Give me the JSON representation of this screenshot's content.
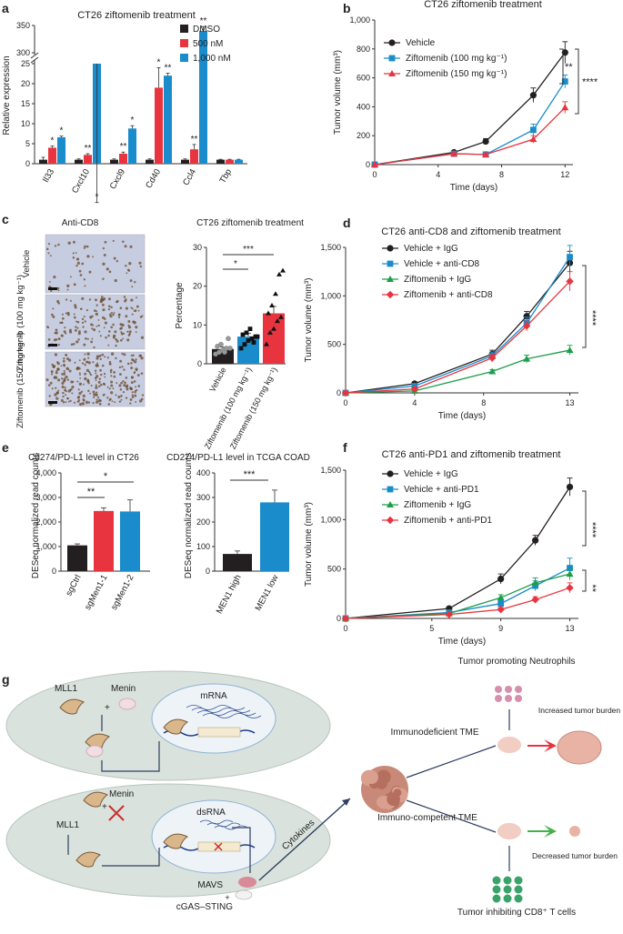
{
  "colors": {
    "black": "#231f20",
    "red": "#e8343f",
    "blue": "#1a8ccc",
    "green": "#1e9e4a",
    "cell": "#d9e2dc",
    "dark": "#5a6b62"
  },
  "panels": {
    "a": {
      "label": "a",
      "title": "CT26 ziftomenib treatment",
      "ylabel": "Relative expression",
      "legend": [
        "DMSO",
        "500 nM",
        "1,000 nM"
      ],
      "yticks_low": [
        "0",
        "5",
        "10",
        "15",
        "20",
        "25"
      ],
      "yticks_high": [
        "300",
        "350"
      ],
      "chart_data": {
        "type": "bar",
        "categories": [
          "Il33",
          "Cxcl10",
          "Cxcl9",
          "Cd40",
          "Ccl4",
          "Tbp"
        ],
        "series": [
          {
            "name": "DMSO",
            "values": [
              1,
              1,
              1,
              1,
              1,
              1
            ]
          },
          {
            "name": "500 nM",
            "values": [
              4,
              2.2,
              2.5,
              19,
              3.6,
              1
            ]
          },
          {
            "name": "1,000 nM",
            "values": [
              6.6,
              25,
              8.8,
              22,
              340,
              1
            ]
          }
        ],
        "errors": [
          [
            0.6,
            0.2,
            0.2,
            0.2,
            0.2,
            0.1
          ],
          [
            0.4,
            0.3,
            0.4,
            5,
            1.2,
            0.1
          ],
          [
            0.3,
            0.5,
            0.7,
            0.6,
            8,
            0.1
          ]
        ],
        "stars": [
          [
            "*",
            "*"
          ],
          [
            "**",
            "*"
          ],
          [
            "**",
            "*"
          ],
          [
            "*",
            "**"
          ],
          [
            "**",
            "**"
          ],
          [
            "",
            ""
          ]
        ]
      }
    },
    "b": {
      "label": "b",
      "title": "CT26 ziftomenib treatment",
      "ylabel": "Tumor volume (mm³)",
      "xlabel": "Time (days)",
      "legend": [
        "Vehicle",
        "Ziftomenib (100 mg kg⁻¹)",
        "Ziftomenib (150 mg kg⁻¹)"
      ],
      "sig": [
        "**",
        "****"
      ],
      "chart_data": {
        "type": "line",
        "x": [
          0,
          5,
          7,
          10,
          12
        ],
        "ylim": [
          0,
          1000
        ],
        "xlim": [
          0,
          12.5
        ],
        "xticks": [
          0,
          4,
          8,
          12
        ],
        "yticks": [
          "0",
          "200",
          "400",
          "600",
          "800",
          "1,000"
        ],
        "series": [
          {
            "name": "Vehicle",
            "values": [
              0,
              85,
              160,
              480,
              775
            ],
            "err": [
              0,
              10,
              20,
              50,
              75
            ]
          },
          {
            "name": "Ziftomenib (100 mg kg⁻¹)",
            "values": [
              0,
              75,
              70,
              240,
              575
            ],
            "err": [
              0,
              8,
              10,
              40,
              45
            ]
          },
          {
            "name": "Ziftomenib (150 mg kg⁻¹)",
            "values": [
              0,
              75,
              70,
              175,
              395
            ],
            "err": [
              0,
              8,
              10,
              25,
              40
            ]
          }
        ]
      }
    },
    "c": {
      "label": "c",
      "img_title": "Anti-CD8",
      "img_labels": [
        "Vehicle",
        "Ziftomenib (100 mg kg⁻¹)",
        "Ziftomenib (150 mg kg⁻¹)"
      ],
      "title": "CT26 ziftomenib treatment",
      "ylabel": "Percentage",
      "sig": [
        "*",
        "***"
      ],
      "chart_data": {
        "type": "bar",
        "categories": [
          "Vehicle",
          "Ziftomenib (100 mg kg⁻¹)",
          "Ziftomenib (150 mg kg⁻¹)"
        ],
        "values": [
          3.8,
          7.0,
          13.0
        ],
        "err": [
          0.5,
          0.8,
          1.8
        ],
        "ylim": [
          0,
          30
        ],
        "yticks": [
          "0",
          "10",
          "20",
          "30"
        ],
        "points": [
          [
            2.5,
            3,
            3.5,
            4,
            4,
            4.5,
            5,
            3,
            6.5
          ],
          [
            4,
            5,
            6,
            6.5,
            7,
            7.5,
            8,
            9,
            5.5,
            7
          ],
          [
            5,
            8,
            9,
            11,
            12,
            13,
            15,
            18,
            23,
            24
          ]
        ]
      }
    },
    "d": {
      "label": "d",
      "title": "CT26 anti-CD8 and ziftomenib treatment",
      "ylabel": "Tumor volume (mm³)",
      "xlabel": "Time (days)",
      "legend": [
        "Vehicle + IgG",
        "Vehicle + anti-CD8",
        "Ziftomenib + IgG",
        "Ziftomenib + anti-CD8"
      ],
      "sig": [
        "****"
      ],
      "chart_data": {
        "type": "line",
        "x": [
          0,
          4,
          8.5,
          10.5,
          13
        ],
        "ylim": [
          0,
          1500
        ],
        "xlim": [
          0,
          13.5
        ],
        "xticks": [
          0,
          4,
          8,
          13
        ],
        "yticks": [
          "0",
          "500",
          "1,000",
          "1,500"
        ],
        "series": [
          {
            "name": "Vehicle + IgG",
            "values": [
              0,
              95,
              400,
              790,
              1340
            ],
            "err": [
              0,
              15,
              40,
              50,
              120
            ]
          },
          {
            "name": "Vehicle + anti-CD8",
            "values": [
              0,
              70,
              380,
              720,
              1400
            ],
            "err": [
              0,
              10,
              40,
              60,
              120
            ]
          },
          {
            "name": "Ziftomenib + IgG",
            "values": [
              0,
              20,
              220,
              350,
              440
            ],
            "err": [
              0,
              5,
              20,
              40,
              50
            ]
          },
          {
            "name": "Ziftomenib + anti-CD8",
            "values": [
              0,
              40,
              360,
              690,
              1150
            ],
            "err": [
              0,
              8,
              40,
              50,
              100
            ]
          }
        ]
      }
    },
    "e": {
      "label": "e",
      "left": {
        "title": "Cd274/PD-L1 level in CT26",
        "ylabel": "DESeq normalized read counts",
        "sig": [
          "**",
          "*"
        ],
        "chart_data": {
          "type": "bar",
          "categories": [
            "sgCtrl",
            "sgMen1-1",
            "sgMen1-2"
          ],
          "values": [
            1050,
            2450,
            2430
          ],
          "err": [
            60,
            130,
            470
          ],
          "ylim": [
            0,
            4000
          ],
          "yticks": [
            "0",
            "1,000",
            "2,000",
            "3,000",
            "4,000"
          ]
        }
      },
      "right": {
        "title": "CD274/PD-L1 level in TCGA COAD",
        "ylabel": "DESeq normalized read counts",
        "sig": [
          "***"
        ],
        "chart_data": {
          "type": "bar",
          "categories": [
            "MEN1 high",
            "MEN1 low"
          ],
          "values": [
            70,
            280
          ],
          "err": [
            12,
            50
          ],
          "ylim": [
            0,
            400
          ],
          "yticks": [
            "0",
            "100",
            "200",
            "300",
            "400"
          ]
        }
      }
    },
    "f": {
      "label": "f",
      "title": "CT26 anti-PD1 and ziftomenib treatment",
      "ylabel": "Tumor volume (mm³)",
      "xlabel": "Time (days)",
      "legend": [
        "Vehicle + IgG",
        "Vehicle + anti-PD1",
        "Ziftomenib + IgG",
        "Ziftomenib + anti-PD1"
      ],
      "sig": [
        "****",
        "**"
      ],
      "chart_data": {
        "type": "line",
        "x": [
          0,
          6,
          9,
          11,
          13
        ],
        "ylim": [
          0,
          1500
        ],
        "xlim": [
          0,
          13.5
        ],
        "xticks": [
          0,
          5,
          9,
          13
        ],
        "yticks": [
          "0",
          "500",
          "1,000",
          "1,500"
        ],
        "series": [
          {
            "name": "Vehicle + IgG",
            "values": [
              0,
              100,
              400,
              790,
              1330
            ],
            "err": [
              0,
              15,
              50,
              50,
              90
            ]
          },
          {
            "name": "Vehicle + anti-PD1",
            "values": [
              0,
              60,
              150,
              330,
              510
            ],
            "err": [
              0,
              10,
              30,
              50,
              100
            ]
          },
          {
            "name": "Ziftomenib + IgG",
            "values": [
              0,
              50,
              210,
              360,
              450
            ],
            "err": [
              0,
              8,
              30,
              50,
              60
            ]
          },
          {
            "name": "Ziftomenib + anti-PD1",
            "values": [
              0,
              40,
              90,
              190,
              310
            ],
            "err": [
              0,
              8,
              20,
              30,
              50
            ]
          }
        ]
      }
    },
    "g": {
      "label": "g",
      "top": {
        "mll1": "MLL1",
        "menin": "Menin",
        "mrna": "mRNA",
        "plus": "+"
      },
      "bottom": {
        "mll1": "MLL1",
        "menin": "Menin",
        "dsrna": "dsRNA",
        "mavs": "MAVS",
        "cgas": "cGAS–STING",
        "plus": "+"
      },
      "cytokines": "Cytokines",
      "immunodeficient": "Immunodeficient TME",
      "immunocompetent": "Immuno-competent TME",
      "neutrophils": "Tumor promoting Neutrophils",
      "increased": "Increased tumor burden",
      "decreased": "Decreased tumor burden",
      "tcells": "Tumor inhibiting CD8⁺ T cells"
    }
  }
}
